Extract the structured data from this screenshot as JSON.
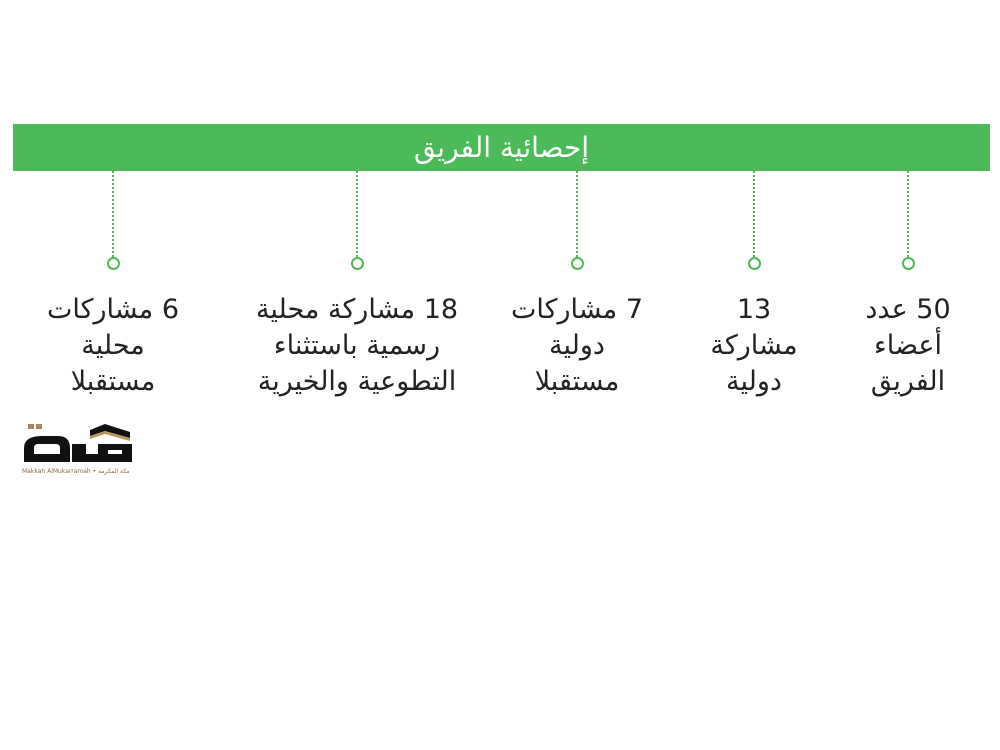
{
  "header": {
    "title": "إحصائية الفريق"
  },
  "accent_color": "#4cba58",
  "stats": [
    {
      "lines": [
        "50 عدد",
        "أعضاء",
        "الفريق"
      ]
    },
    {
      "lines": [
        "13",
        "مشاركة",
        "دولية"
      ]
    },
    {
      "lines": [
        "7 مشاركات",
        "دولية",
        "مستقبلا"
      ]
    },
    {
      "lines": [
        "18 مشاركة محلية",
        "رسمية باستثناء",
        "التطوعية والخيرية"
      ]
    },
    {
      "lines": [
        "6 مشاركات",
        "محلية",
        "مستقبلا"
      ]
    }
  ],
  "logo": {
    "mark": "مكة",
    "caption": "Makkah AlMukarramah • مكة المكرمة"
  }
}
